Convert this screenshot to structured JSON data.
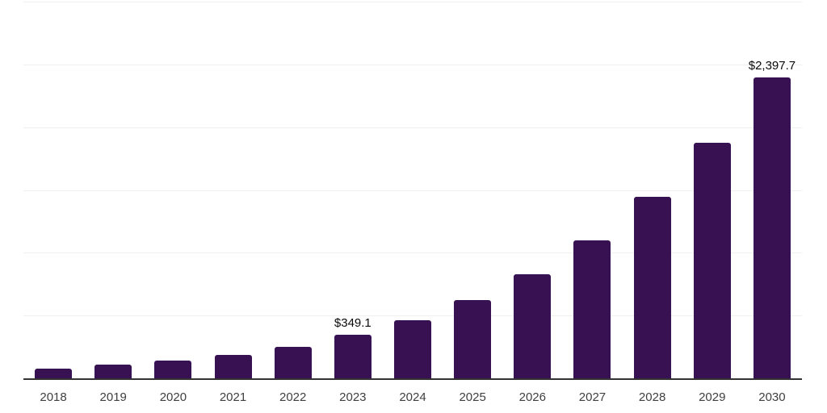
{
  "chart_data": {
    "type": "bar",
    "title": "",
    "xlabel": "",
    "ylabel": "",
    "categories": [
      "2018",
      "2019",
      "2020",
      "2021",
      "2022",
      "2023",
      "2024",
      "2025",
      "2026",
      "2027",
      "2028",
      "2029",
      "2030"
    ],
    "values": [
      77,
      107,
      140,
      186,
      250,
      349.1,
      460,
      622,
      828,
      1098,
      1446,
      1877,
      2397.7
    ],
    "data_labels": [
      "",
      "",
      "",
      "",
      "",
      "$349.1",
      "",
      "",
      "",
      "",
      "",
      "",
      "$2,397.7"
    ],
    "ylim": [
      0,
      3000
    ],
    "gridline_values": [
      500,
      1000,
      1500,
      2000,
      2500,
      3000
    ],
    "grid": "horizontal-only",
    "legend_position": "none",
    "bar_color": "#371152",
    "axis_line_color": "#333333",
    "gridline_color": "#f0f0f0",
    "tick_label_color": "#3f3f3f",
    "data_label_color": "#0a0a0a",
    "background_color": "#ffffff"
  }
}
